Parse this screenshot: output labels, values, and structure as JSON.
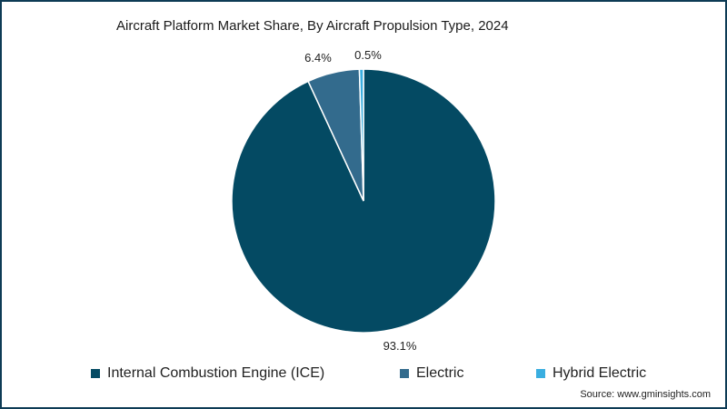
{
  "chart_data": {
    "type": "pie",
    "title": "Aircraft Platform Market Share, By Aircraft Propulsion Type, 2024",
    "slices": [
      {
        "name": "Internal Combustion Engine (ICE)",
        "value": 93.1,
        "label": "93.1%",
        "color": "#044a63"
      },
      {
        "name": "Electric",
        "value": 6.4,
        "label": "6.4%",
        "color": "#336b8d"
      },
      {
        "name": "Hybrid Electric",
        "value": 0.5,
        "label": "0.5%",
        "color": "#3aaee0"
      }
    ],
    "legend_position": "bottom"
  },
  "source": "Source: www.gminsights.com"
}
